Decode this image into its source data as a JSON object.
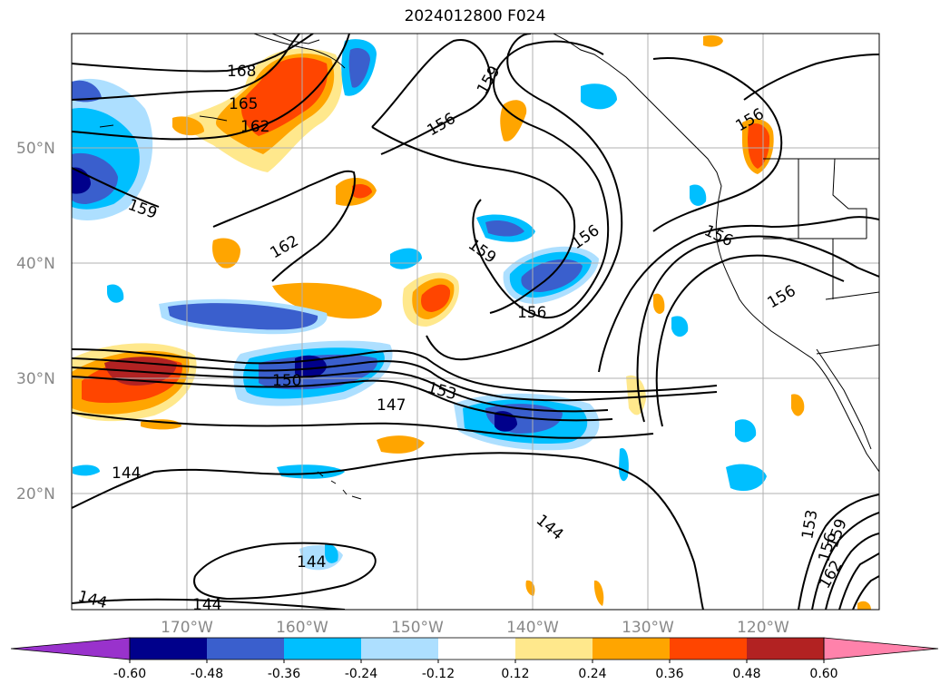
{
  "title": "2024012800 F024",
  "lat_ticks": [
    "50°N",
    "40°N",
    "30°N",
    "20°N"
  ],
  "lon_ticks": [
    "170°W",
    "160°W",
    "150°W",
    "140°W",
    "130°W",
    "120°W"
  ],
  "colorbar": {
    "colors": [
      "#9932CC",
      "#00008B",
      "#3A5FCD",
      "#00BFFF",
      "#ADDFFF",
      "#FFFFFF",
      "#FFE88C",
      "#FFA500",
      "#FF4500",
      "#B22222",
      "#FF82AB"
    ],
    "labels": [
      "-0.60",
      "-0.48",
      "-0.36",
      "-0.24",
      "-0.12",
      "0.12",
      "0.24",
      "0.36",
      "0.48",
      "0.60"
    ]
  },
  "contour_labels": [
    "168",
    "165",
    "162",
    "159",
    "162",
    "156",
    "159",
    "156",
    "159",
    "156",
    "156",
    "156",
    "156",
    "150",
    "147",
    "153",
    "144",
    "144",
    "144",
    "144",
    "144",
    "153",
    "156",
    "159",
    "162"
  ],
  "colors": {
    "contour": "#000000",
    "grid": "#b0b0b0",
    "coast": "#000000"
  }
}
